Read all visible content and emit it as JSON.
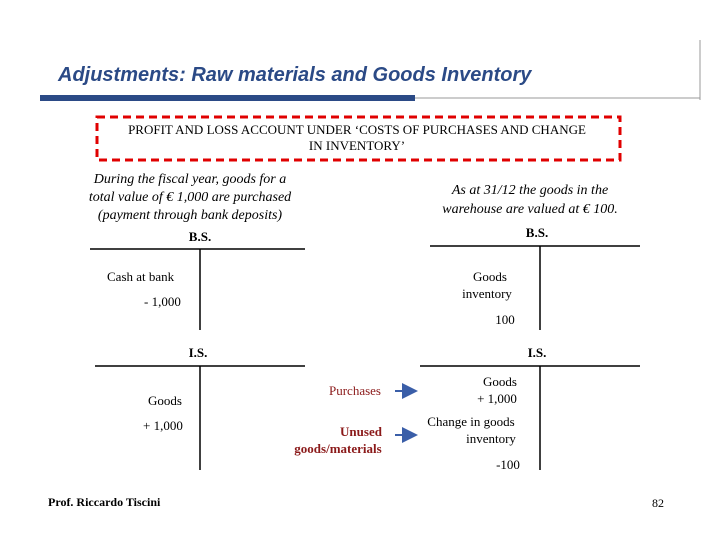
{
  "header": {
    "title": "Adjustments: Raw materials and Goods Inventory"
  },
  "box_text": [
    "PROFIT AND LOSS ACCOUNT UNDER ‘COSTS OF PURCHASES AND CHANGE",
    "IN INVENTORY’"
  ],
  "left_note": [
    "During the fiscal year, goods for a",
    "total value of € 1,000 are purchased",
    "(payment through bank deposits)"
  ],
  "right_note": [
    "As at 31/12 the goods in the",
    "warehouse are valued at € 100."
  ],
  "bs_left": {
    "title": "B.S.",
    "label": "Cash at bank",
    "value": "- 1,000"
  },
  "bs_right": {
    "title": "B.S.",
    "label": [
      "Goods",
      "inventory"
    ],
    "value": "100"
  },
  "is_left": {
    "title": "I.S.",
    "label": "Goods",
    "value": "+ 1,000"
  },
  "is_right": {
    "title": "I.S.",
    "entry1": [
      "Goods",
      "+ 1,000"
    ],
    "entry2": [
      "Change in goods",
      "inventory"
    ],
    "value": "-100"
  },
  "middle": {
    "purchases": "Purchases",
    "unused": [
      "Unused",
      "goods/materials"
    ]
  },
  "footer": {
    "author": "Prof. Riccardo Tiscini",
    "page": "82"
  }
}
